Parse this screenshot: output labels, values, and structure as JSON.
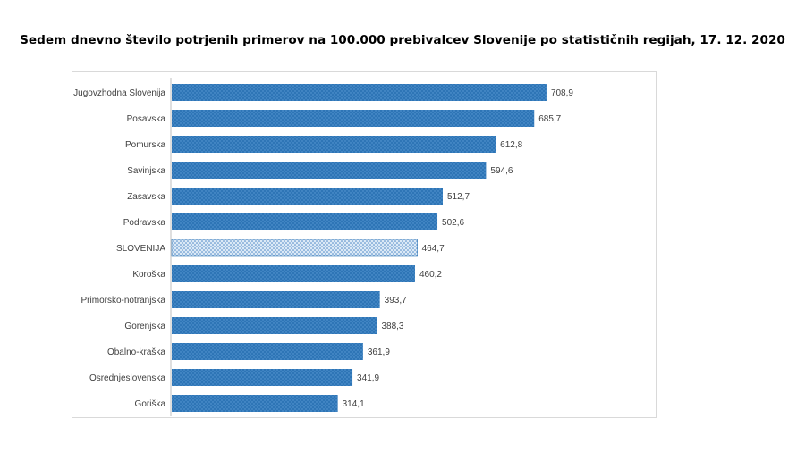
{
  "chart_data": {
    "type": "bar",
    "orientation": "horizontal",
    "title": "Sedem dnevno število potrjenih primerov na 100.000 prebivalcev Slovenije po statističnih regijah, 17. 12. 2020",
    "categories": [
      "Jugovzhodna Slovenija",
      "Posavska",
      "Pomurska",
      "Savinjska",
      "Zasavska",
      "Podravska",
      "SLOVENIJA",
      "Koroška",
      "Primorsko-notranjska",
      "Gorenjska",
      "Obalno-kraška",
      "Osrednjeslovenska",
      "Goriška"
    ],
    "values": [
      708.9,
      685.7,
      612.8,
      594.6,
      512.7,
      502.6,
      464.7,
      460.2,
      393.7,
      388.3,
      361.9,
      341.9,
      314.1
    ],
    "value_labels": [
      "708,9",
      "685,7",
      "612,8",
      "594,6",
      "512,7",
      "502,6",
      "464,7",
      "460,2",
      "393,7",
      "388,3",
      "361,9",
      "341,9",
      "314,1"
    ],
    "highlight_category": "SLOVENIJA",
    "xlim": [
      0,
      730
    ],
    "grid": false,
    "legend": "none",
    "colors": {
      "bar": "#2e75b6",
      "bar_pattern": "#5b9bd5",
      "highlight_bar": "#bdd7ee",
      "highlight_pattern": "#2e75b6",
      "axis": "#bfbfbf",
      "label": "#404040"
    }
  }
}
